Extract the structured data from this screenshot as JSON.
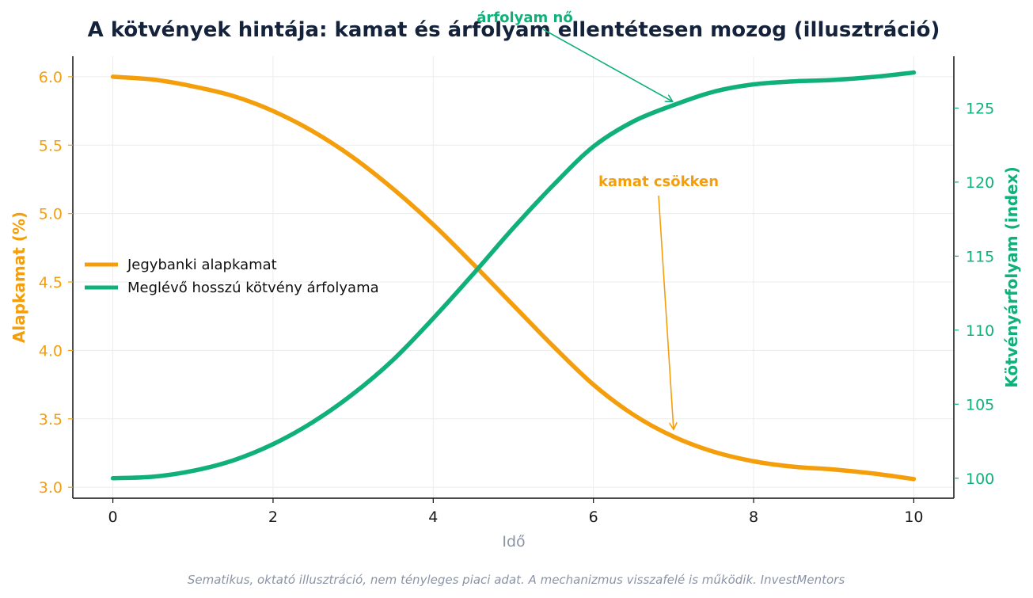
{
  "chart_data": {
    "type": "line",
    "title": "A kötvények hintája: kamat és árfolyam ellentétesen mozog  (illusztráció)",
    "xlabel": "Idő",
    "ylabel_left": "Alapkamat (%)",
    "ylabel_right": "Kötvényárfolyam (index)",
    "xlim": [
      -0.5,
      10.5
    ],
    "ylim_left": [
      2.92,
      6.15
    ],
    "ylim_right": [
      98.65,
      128.5
    ],
    "x_ticks": [
      0,
      2,
      4,
      6,
      8,
      10
    ],
    "y_ticks_left": [
      "3.0",
      "3.5",
      "4.0",
      "4.5",
      "5.0",
      "5.5",
      "6.0"
    ],
    "y_ticks_right": [
      "100",
      "105",
      "110",
      "115",
      "120",
      "125"
    ],
    "grid": true,
    "legend_position": "center-left",
    "x": [
      0,
      0.5,
      1,
      1.5,
      2,
      2.5,
      3,
      3.5,
      4,
      4.5,
      5,
      5.5,
      6,
      6.5,
      7,
      7.5,
      8,
      8.5,
      9,
      9.5,
      10
    ],
    "series": [
      {
        "name": "Jegybanki alapkamat",
        "axis": "left",
        "color": "#f59e0b",
        "values": [
          6.0,
          5.98,
          5.93,
          5.86,
          5.75,
          5.6,
          5.41,
          5.18,
          4.92,
          4.63,
          4.33,
          4.03,
          3.75,
          3.53,
          3.37,
          3.26,
          3.19,
          3.15,
          3.13,
          3.1,
          3.06
        ]
      },
      {
        "name": "Meglévő hosszú kötvény árfolyama",
        "axis": "right",
        "color": "#10b07a",
        "values": [
          100.0,
          100.1,
          100.5,
          101.2,
          102.3,
          103.8,
          105.7,
          108.0,
          110.8,
          113.8,
          116.9,
          119.8,
          122.4,
          124.1,
          125.2,
          126.1,
          126.6,
          126.8,
          126.9,
          127.1,
          127.4
        ]
      }
    ],
    "annotations": [
      {
        "text": "kamat csökken",
        "x": 7.0,
        "y": 3.37,
        "axis": "left",
        "color": "#f59e0b"
      },
      {
        "text": "árfolyam nő",
        "x": 7.0,
        "y": 125.2,
        "axis": "right",
        "color": "#10b07a"
      }
    ]
  },
  "footer": "Sematikus, oktató illusztráció, nem tényleges piaci adat. A mechanizmus visszafelé is működik. InvestMentors"
}
